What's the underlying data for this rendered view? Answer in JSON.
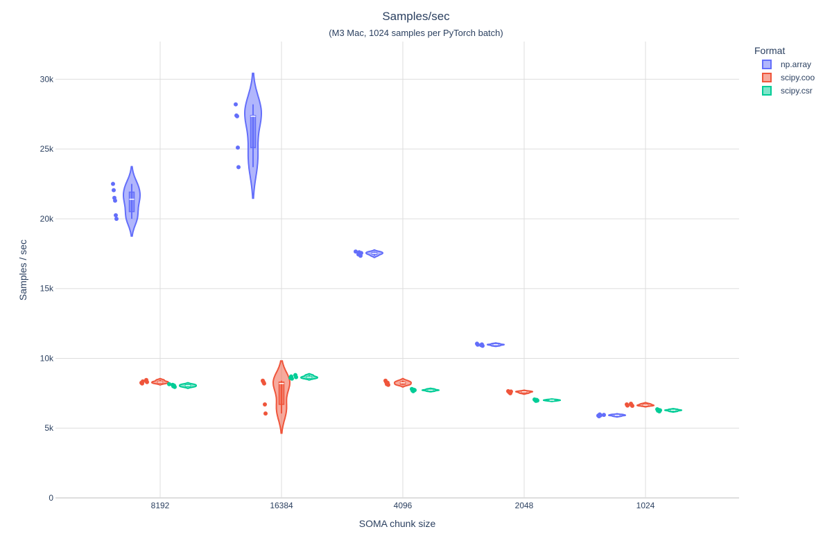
{
  "chart_data": {
    "type": "violin",
    "title": "Samples/sec",
    "subtitle": "(M3 Mac, 1024 samples per PyTorch batch)",
    "x_label": "SOMA chunk size",
    "y_label": "Samples / sec",
    "legend_title": "Format",
    "legend_position": "right",
    "grid": true,
    "categories": [
      "8192",
      "16384",
      "4096",
      "2048",
      "1024"
    ],
    "ylim": [
      0,
      32700
    ],
    "yticks": [
      0,
      {
        "value": 5000,
        "label": "5k"
      },
      {
        "value": 10000,
        "label": "10k"
      },
      {
        "value": 15000,
        "label": "15k"
      },
      {
        "value": 20000,
        "label": "20k"
      },
      {
        "value": 25000,
        "label": "25k"
      },
      {
        "value": 30000,
        "label": "30k"
      }
    ],
    "series": [
      {
        "name": "np.array",
        "color": "#636efa",
        "values": [
          [
            22500,
            22050,
            21500,
            21300,
            20250,
            20000
          ],
          [
            28200,
            27400,
            27350,
            25100,
            23700
          ],
          [
            17450,
            17600,
            17500,
            17350,
            17550,
            17650
          ],
          [
            10950,
            11000,
            10900,
            11050,
            10980
          ],
          [
            5950,
            5900,
            5850,
            5980,
            5920
          ]
        ]
      },
      {
        "name": "scipy.coo",
        "color": "#ef553b",
        "values": [
          [
            8450,
            8300,
            8250,
            8200,
            8350
          ],
          [
            8400,
            8300,
            8200,
            6700,
            6050
          ],
          [
            8400,
            8300,
            8150,
            8250,
            8100
          ],
          [
            7650,
            7600,
            7550,
            7500,
            7620
          ],
          [
            6750,
            6650,
            6600,
            6700,
            6620
          ]
        ]
      },
      {
        "name": "scipy.csr",
        "color": "#00cc96",
        "values": [
          [
            8100,
            8000,
            8050,
            7950,
            8150
          ],
          [
            8800,
            8650,
            8600,
            8700,
            8550
          ],
          [
            7800,
            7700,
            7650,
            7750,
            7720
          ],
          [
            7050,
            7000,
            6950,
            7020,
            6980
          ],
          [
            6350,
            6250,
            6300,
            6200,
            6280
          ]
        ]
      }
    ]
  }
}
